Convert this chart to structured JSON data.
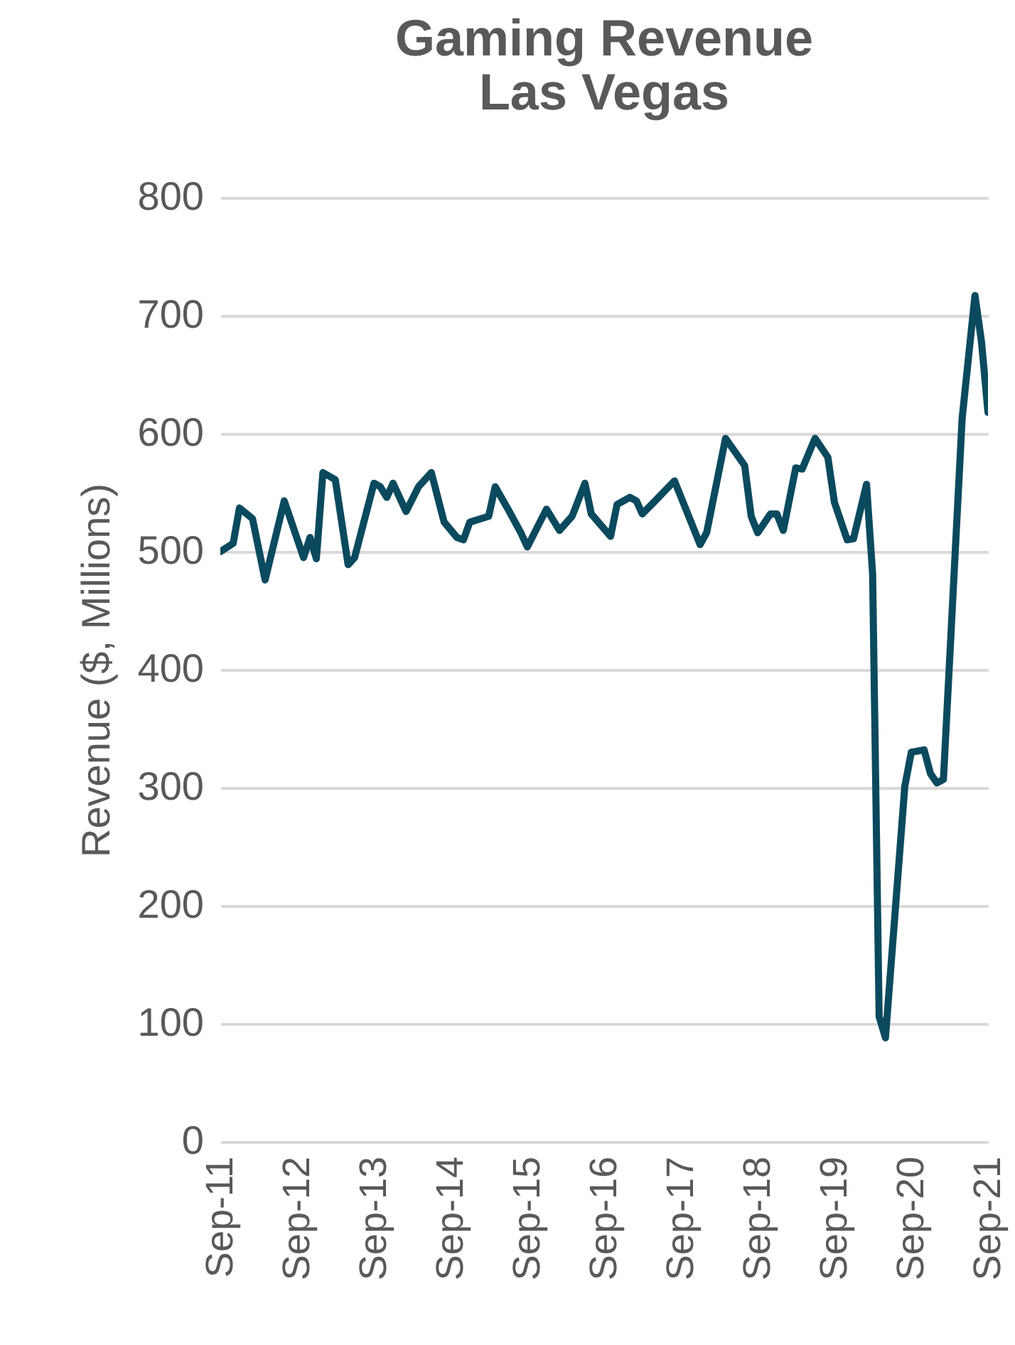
{
  "chart_data": {
    "type": "line",
    "title": "Gaming Revenue",
    "subtitle": "Las Vegas",
    "ylabel": "Revenue ($, Millions)",
    "x": [
      "2011-09",
      "2011-11",
      "2011-12",
      "2012-02",
      "2012-04",
      "2012-07",
      "2012-10",
      "2012-11",
      "2012-12",
      "2013-01",
      "2013-03",
      "2013-05",
      "2013-06",
      "2013-09",
      "2013-10",
      "2013-11",
      "2013-12",
      "2014-02",
      "2014-04",
      "2014-06",
      "2014-08",
      "2014-10",
      "2014-11",
      "2014-12",
      "2015-03",
      "2015-04",
      "2015-06",
      "2015-08",
      "2015-09",
      "2015-12",
      "2016-02",
      "2016-04",
      "2016-06",
      "2016-07",
      "2016-10",
      "2016-11",
      "2017-01",
      "2017-02",
      "2017-03",
      "2017-05",
      "2017-08",
      "2017-12",
      "2018-01",
      "2018-04",
      "2018-07",
      "2018-08",
      "2018-09",
      "2018-11",
      "2018-12",
      "2019-01",
      "2019-03",
      "2019-04",
      "2019-06",
      "2019-08",
      "2019-09",
      "2019-11",
      "2019-12",
      "2020-02",
      "2020-03",
      "2020-04",
      "2020-05",
      "2020-08",
      "2020-09",
      "2020-11",
      "2020-12",
      "2021-01",
      "2021-02",
      "2021-05",
      "2021-07",
      "2021-08",
      "2021-09"
    ],
    "series": [
      {
        "color": "#0b4a5e",
        "values": [
          500,
          507,
          537,
          528,
          476,
          543,
          495,
          512,
          494,
          567,
          561,
          489,
          495,
          558,
          555,
          546,
          558,
          534,
          555,
          567,
          525,
          512,
          510,
          525,
          530,
          555,
          536,
          516,
          504,
          536,
          518,
          530,
          558,
          532,
          513,
          540,
          546,
          543,
          532,
          543,
          560,
          506,
          516,
          596,
          573,
          530,
          516,
          532,
          532,
          518,
          571,
          570,
          596,
          580,
          542,
          510,
          511,
          557,
          481,
          106,
          88,
          301,
          330,
          332,
          312,
          304,
          307,
          613,
          717,
          678,
          618
        ]
      }
    ],
    "xlim": [
      "2011-09",
      "2021-09"
    ],
    "xticks": [
      {
        "value": "2011-09",
        "label": "Sep-11"
      },
      {
        "value": "2012-09",
        "label": "Sep-12"
      },
      {
        "value": "2013-09",
        "label": "Sep-13"
      },
      {
        "value": "2014-09",
        "label": "Sep-14"
      },
      {
        "value": "2015-09",
        "label": "Sep-15"
      },
      {
        "value": "2016-09",
        "label": "Sep-16"
      },
      {
        "value": "2017-09",
        "label": "Sep-17"
      },
      {
        "value": "2018-09",
        "label": "Sep-18"
      },
      {
        "value": "2019-09",
        "label": "Sep-19"
      },
      {
        "value": "2020-09",
        "label": "Sep-20"
      },
      {
        "value": "2021-09",
        "label": "Sep-21"
      }
    ],
    "ylim": [
      0,
      800
    ],
    "yticks": [
      0,
      100,
      200,
      300,
      400,
      500,
      600,
      700,
      800
    ],
    "grid": "y"
  }
}
